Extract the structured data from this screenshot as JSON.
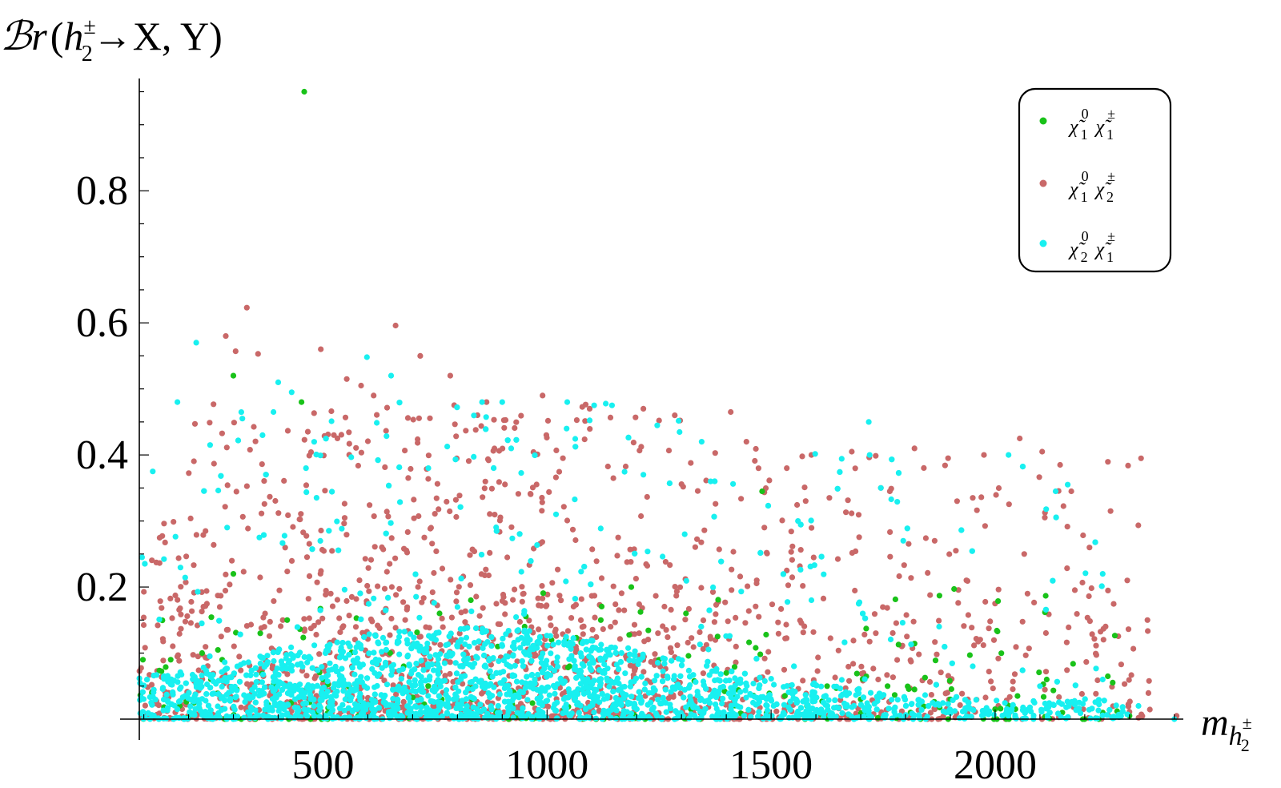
{
  "chart_data": {
    "type": "scatter",
    "xlim": [
      90,
      2420
    ],
    "ylim": [
      0,
      0.97
    ],
    "x_ticks": [
      500,
      1000,
      1500,
      2000
    ],
    "x_tick_labels": [
      "500",
      "1000",
      "1500",
      "2000"
    ],
    "y_ticks": [
      0.2,
      0.4,
      0.6,
      0.8
    ],
    "y_tick_labels": [
      "0.2",
      "0.4",
      "0.6",
      "0.8"
    ],
    "grid": false,
    "legend_position": "top-right",
    "ylabel": {
      "prefix": "ℬr",
      "open": "(",
      "h": "h",
      "h_sup": "±",
      "h_sub": "2",
      "arrow": "→",
      "rest": "X, Y)"
    },
    "xlabel": {
      "m": "m",
      "h": "h",
      "h_sup": "±",
      "h_sub": "2"
    },
    "series": [
      {
        "key": "chi10_chi1pm",
        "legend": {
          "a": "χ̃",
          "a_sup": "0",
          "a_sub": "1",
          "b": "χ̃",
          "b_sup": "±",
          "b_sub": "1"
        },
        "color": "#19c219",
        "points": [
          [
            458,
            0.95
          ],
          [
            300,
            0.52
          ],
          [
            452,
            0.48
          ],
          [
            1480,
            0.345
          ],
          [
            1188,
            0.2
          ],
          [
            250,
            0.06
          ],
          [
            275,
            0.09
          ],
          [
            160,
            0.09
          ],
          [
            118,
            0.04
          ],
          [
            98,
            0.09
          ],
          [
            360,
            0.13
          ],
          [
            420,
            0.15
          ],
          [
            1310,
            0.16
          ],
          [
            1625,
            0.05
          ],
          [
            1760,
            0.05
          ],
          [
            1900,
            0.03
          ],
          [
            2050,
            0.035
          ],
          [
            2150,
            0.01
          ],
          [
            2240,
            0.01
          ],
          [
            760,
            0.16
          ],
          [
            830,
            0.18
          ],
          [
            560,
            0.11
          ],
          [
            950,
            0.14
          ],
          [
            1050,
            0.08
          ],
          [
            1120,
            0.15
          ],
          [
            300,
            0.22
          ],
          [
            500,
            0.06
          ],
          [
            650,
            0.1
          ],
          [
            1400,
            0.07
          ],
          [
            1580,
            0.02
          ],
          [
            1700,
            0.03
          ],
          [
            2000,
            0.015
          ],
          [
            2300,
            0.005
          ],
          [
            180,
            0.02
          ],
          [
            230,
            0.1
          ],
          [
            890,
            0.11
          ],
          [
            1250,
            0.09
          ],
          [
            1820,
            0.045
          ],
          [
            680,
            0.08
          ],
          [
            1010,
            0.12
          ]
        ]
      },
      {
        "key": "chi10_chi2pm",
        "legend": {
          "a": "χ̃",
          "a_sup": "0",
          "a_sub": "1",
          "b": "χ̃",
          "b_sup": "±",
          "b_sub": "2"
        },
        "color": "#c96868",
        "points": [
          [
            330,
            0.623
          ],
          [
            662,
            0.596
          ],
          [
            283,
            0.58
          ],
          [
            305,
            0.557
          ],
          [
            355,
            0.553
          ],
          [
            495,
            0.56
          ],
          [
            717,
            0.55
          ],
          [
            784,
            0.52
          ],
          [
            553,
            0.515
          ],
          [
            585,
            0.505
          ],
          [
            613,
            0.49
          ],
          [
            865,
            0.48
          ],
          [
            990,
            0.49
          ],
          [
            1095,
            0.47
          ],
          [
            1410,
            0.465
          ],
          [
            1215,
            0.47
          ],
          [
            1285,
            0.46
          ],
          [
            1680,
            0.405
          ],
          [
            1975,
            0.4
          ],
          [
            2055,
            0.425
          ],
          [
            2105,
            0.405
          ],
          [
            2145,
            0.385
          ],
          [
            1820,
            0.41
          ],
          [
            1895,
            0.395
          ],
          [
            1915,
            0.33
          ],
          [
            1950,
            0.335
          ],
          [
            1535,
            0.38
          ],
          [
            1590,
            0.4
          ],
          [
            1630,
            0.335
          ],
          [
            2170,
            0.345
          ],
          [
            2065,
            0.25
          ],
          [
            2340,
            0.15
          ],
          [
            2295,
            0.21
          ],
          [
            2405,
            0.005
          ],
          [
            1745,
            0.35
          ],
          [
            1765,
            0.345
          ],
          [
            1865,
            0.27
          ],
          [
            1535,
            0.225
          ],
          [
            1485,
            0.29
          ],
          [
            2000,
            0.175
          ]
        ]
      },
      {
        "key": "chi20_chi1pm",
        "legend": {
          "a": "χ̃",
          "a_sup": "0",
          "a_sub": "2",
          "b": "χ̃",
          "b_sup": "±",
          "b_sub": "1"
        },
        "color": "#18f0f0",
        "points": [
          [
            217,
            0.57
          ],
          [
            175,
            0.48
          ],
          [
            400,
            0.51
          ],
          [
            430,
            0.495
          ],
          [
            598,
            0.548
          ],
          [
            652,
            0.52
          ],
          [
            1718,
            0.45
          ],
          [
            2162,
            0.355
          ],
          [
            2240,
            0.22
          ],
          [
            2030,
            0.4
          ],
          [
            2135,
            0.345
          ],
          [
            1795,
            0.27
          ],
          [
            1720,
            0.4
          ],
          [
            1745,
            0.35
          ],
          [
            855,
            0.48
          ],
          [
            900,
            0.48
          ],
          [
            1045,
            0.48
          ],
          [
            1105,
            0.475
          ],
          [
            1145,
            0.475
          ],
          [
            920,
            0.41
          ],
          [
            1365,
            0.36
          ],
          [
            1560,
            0.3
          ],
          [
            1345,
            0.42
          ],
          [
            1020,
            0.31
          ],
          [
            248,
            0.415
          ],
          [
            120,
            0.375
          ],
          [
            96,
            0.245
          ],
          [
            286,
            0.29
          ],
          [
            320,
            0.455
          ],
          [
            365,
            0.43
          ],
          [
            462,
            0.38
          ],
          [
            735,
            0.38
          ],
          [
            1215,
            0.37
          ],
          [
            1590,
            0.18
          ],
          [
            1875,
            0.14
          ],
          [
            2240,
            0.06
          ],
          [
            2100,
            0.05
          ],
          [
            1950,
            0.08
          ],
          [
            2320,
            0.02
          ],
          [
            2400,
            0.0
          ]
        ]
      }
    ]
  }
}
